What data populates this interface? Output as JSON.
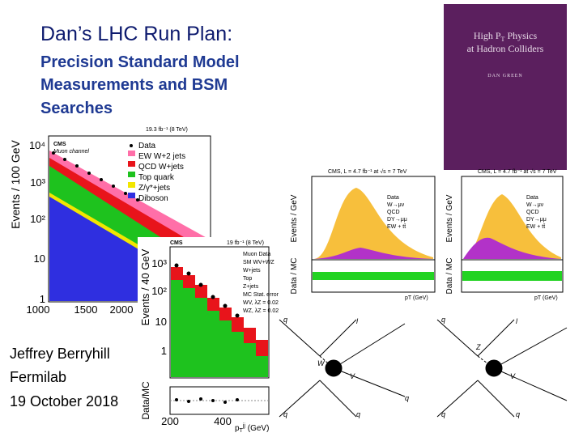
{
  "title": "Dan’s LHC Run Plan:",
  "subtitle": [
    "Precision Standard Model",
    "Measurements and BSM",
    "Searches"
  ],
  "author": [
    "Jeffrey Berryhill",
    "Fermilab",
    "19 October 2018"
  ],
  "book": {
    "title_pieces": [
      "High P",
      "T",
      " Physics"
    ],
    "title_line2": "at Hadron Colliders",
    "author": "DAN GREEN"
  },
  "plot1": {
    "lumi": "19.3 fb⁻¹ (8 TeV)",
    "cms": "CMS",
    "channel": "Muon channel",
    "ylabel": "Events / 100 GeV",
    "legend": [
      "Data",
      "EW W+2 jets",
      "QCD W+jets",
      "Top quark",
      "Z/γ*+jets",
      "Diboson"
    ],
    "yticks": [
      "10⁴",
      "10³",
      "10²",
      "10",
      "1"
    ],
    "xticks": [
      "1000",
      "1500",
      "2000"
    ]
  },
  "plot2": {
    "cms": "CMS",
    "lumi": "19 fb⁻¹ (8 TeV)",
    "ylabel": "Events / 40 GeV",
    "ratio_label": "Data/MC",
    "legend": [
      "Muon Data",
      "SM WV+WZ",
      "W+jets",
      "Top",
      "Z+jets",
      "MC Stat. error",
      "WV, λZ = 0.02",
      "WZ, λZ = 0.02"
    ],
    "yticks": [
      "10³",
      "10²",
      "10",
      "1"
    ],
    "xticks": [
      "200",
      "400"
    ],
    "xlabel_pieces": [
      "p",
      "T",
      "jj",
      " (GeV)"
    ]
  },
  "plot3": {
    "header": "CMS, L = 4.7 fb⁻¹ at √s = 7 TeV",
    "ylabel": "Events / GeV",
    "ratio_label": "Data / MC",
    "xlabel": "pT (GeV)",
    "legend": [
      "Data",
      "W→μν",
      "QCD",
      "DY→μμ",
      "EW + tt̄"
    ]
  },
  "plot4": {
    "header": "CMS, L = 4.7 fb⁻¹ at √s = 7 TeV",
    "ylabel": "Events / GeV",
    "ratio_label": "Data / MC",
    "xlabel": "pT (GeV)",
    "legend": [
      "Data",
      "W→μν",
      "QCD",
      "DY→μμ",
      "EW + tt̄"
    ]
  },
  "diagram1": {
    "labels": [
      "q",
      "l",
      "W",
      "V",
      "q",
      "q",
      "q"
    ]
  },
  "diagram2": {
    "labels": [
      "q",
      "l",
      "Z",
      "V",
      "q",
      "q"
    ]
  }
}
